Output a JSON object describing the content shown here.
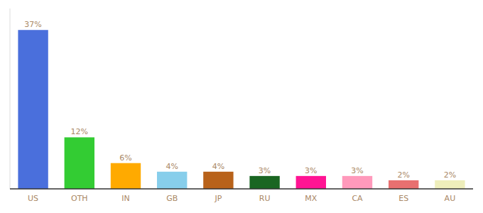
{
  "chart_data": {
    "type": "bar",
    "categories": [
      "US",
      "OTH",
      "IN",
      "GB",
      "JP",
      "RU",
      "MX",
      "CA",
      "ES",
      "AU"
    ],
    "values": [
      37,
      12,
      6,
      4,
      4,
      3,
      3,
      3,
      2,
      2
    ],
    "value_labels": [
      "37%",
      "12%",
      "6%",
      "4%",
      "4%",
      "3%",
      "3%",
      "3%",
      "2%",
      "2%"
    ],
    "colors": [
      "#4a6fdc",
      "#33cc33",
      "#ffaa00",
      "#87ceeb",
      "#b8621a",
      "#1a6622",
      "#ff1493",
      "#ff99bb",
      "#e87070",
      "#eeeebb"
    ],
    "ylim": [
      0,
      42
    ],
    "data_labels": true,
    "tick_labels": "x",
    "grid": false
  }
}
